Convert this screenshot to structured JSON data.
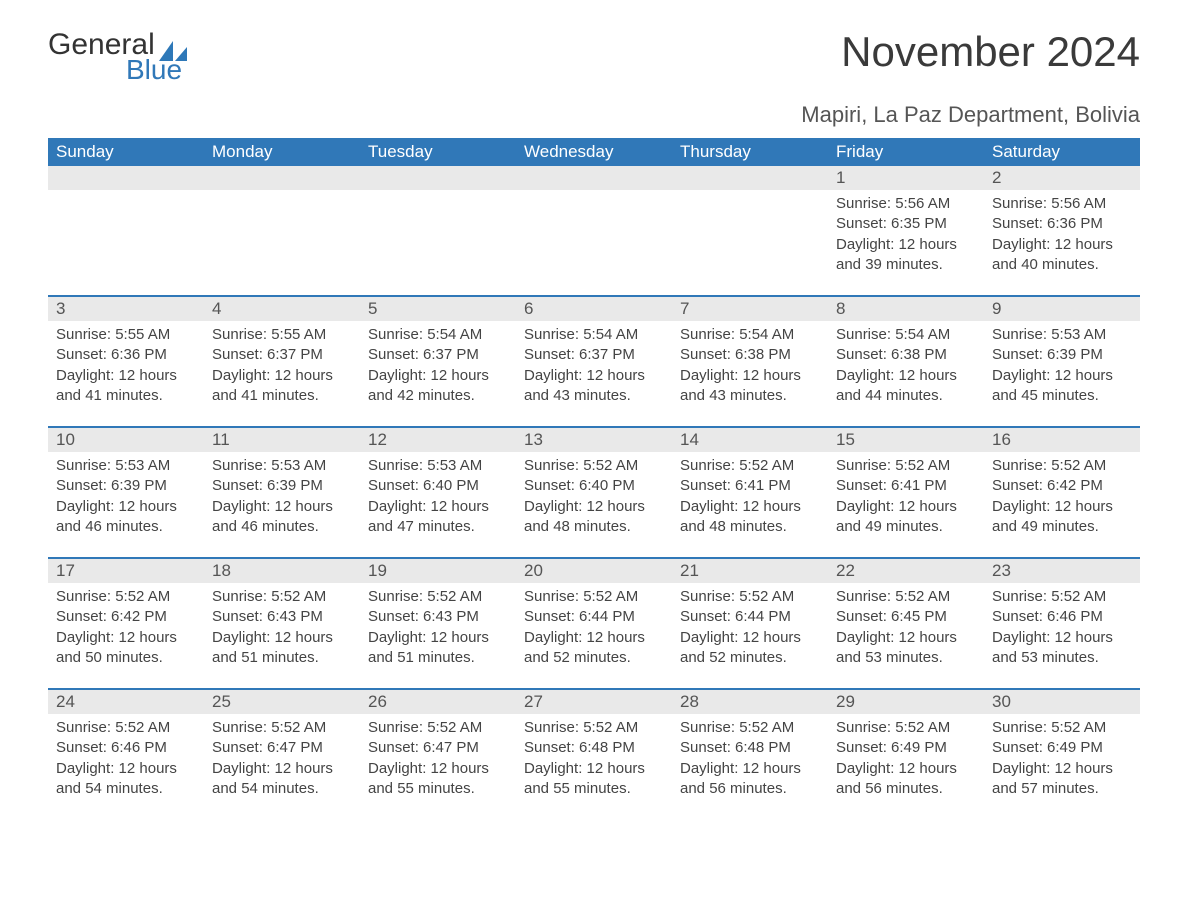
{
  "logo": {
    "word1": "General",
    "word2": "Blue",
    "sail_color": "#2e78b8"
  },
  "title": "November 2024",
  "subtitle": "Mapiri, La Paz Department, Bolivia",
  "colors": {
    "header_bg": "#3078b8",
    "header_fg": "#ffffff",
    "row_divider": "#3078b8",
    "daynum_bg": "#e9e9e9",
    "body_text": "#444444",
    "page_bg": "#ffffff"
  },
  "layout": {
    "columns": 7,
    "rows": 5,
    "first_weekday_index": 5
  },
  "weekdays": [
    "Sunday",
    "Monday",
    "Tuesday",
    "Wednesday",
    "Thursday",
    "Friday",
    "Saturday"
  ],
  "days": [
    {
      "n": 1,
      "sunrise": "5:56 AM",
      "sunset": "6:35 PM",
      "daylight": "12 hours and 39 minutes."
    },
    {
      "n": 2,
      "sunrise": "5:56 AM",
      "sunset": "6:36 PM",
      "daylight": "12 hours and 40 minutes."
    },
    {
      "n": 3,
      "sunrise": "5:55 AM",
      "sunset": "6:36 PM",
      "daylight": "12 hours and 41 minutes."
    },
    {
      "n": 4,
      "sunrise": "5:55 AM",
      "sunset": "6:37 PM",
      "daylight": "12 hours and 41 minutes."
    },
    {
      "n": 5,
      "sunrise": "5:54 AM",
      "sunset": "6:37 PM",
      "daylight": "12 hours and 42 minutes."
    },
    {
      "n": 6,
      "sunrise": "5:54 AM",
      "sunset": "6:37 PM",
      "daylight": "12 hours and 43 minutes."
    },
    {
      "n": 7,
      "sunrise": "5:54 AM",
      "sunset": "6:38 PM",
      "daylight": "12 hours and 43 minutes."
    },
    {
      "n": 8,
      "sunrise": "5:54 AM",
      "sunset": "6:38 PM",
      "daylight": "12 hours and 44 minutes."
    },
    {
      "n": 9,
      "sunrise": "5:53 AM",
      "sunset": "6:39 PM",
      "daylight": "12 hours and 45 minutes."
    },
    {
      "n": 10,
      "sunrise": "5:53 AM",
      "sunset": "6:39 PM",
      "daylight": "12 hours and 46 minutes."
    },
    {
      "n": 11,
      "sunrise": "5:53 AM",
      "sunset": "6:39 PM",
      "daylight": "12 hours and 46 minutes."
    },
    {
      "n": 12,
      "sunrise": "5:53 AM",
      "sunset": "6:40 PM",
      "daylight": "12 hours and 47 minutes."
    },
    {
      "n": 13,
      "sunrise": "5:52 AM",
      "sunset": "6:40 PM",
      "daylight": "12 hours and 48 minutes."
    },
    {
      "n": 14,
      "sunrise": "5:52 AM",
      "sunset": "6:41 PM",
      "daylight": "12 hours and 48 minutes."
    },
    {
      "n": 15,
      "sunrise": "5:52 AM",
      "sunset": "6:41 PM",
      "daylight": "12 hours and 49 minutes."
    },
    {
      "n": 16,
      "sunrise": "5:52 AM",
      "sunset": "6:42 PM",
      "daylight": "12 hours and 49 minutes."
    },
    {
      "n": 17,
      "sunrise": "5:52 AM",
      "sunset": "6:42 PM",
      "daylight": "12 hours and 50 minutes."
    },
    {
      "n": 18,
      "sunrise": "5:52 AM",
      "sunset": "6:43 PM",
      "daylight": "12 hours and 51 minutes."
    },
    {
      "n": 19,
      "sunrise": "5:52 AM",
      "sunset": "6:43 PM",
      "daylight": "12 hours and 51 minutes."
    },
    {
      "n": 20,
      "sunrise": "5:52 AM",
      "sunset": "6:44 PM",
      "daylight": "12 hours and 52 minutes."
    },
    {
      "n": 21,
      "sunrise": "5:52 AM",
      "sunset": "6:44 PM",
      "daylight": "12 hours and 52 minutes."
    },
    {
      "n": 22,
      "sunrise": "5:52 AM",
      "sunset": "6:45 PM",
      "daylight": "12 hours and 53 minutes."
    },
    {
      "n": 23,
      "sunrise": "5:52 AM",
      "sunset": "6:46 PM",
      "daylight": "12 hours and 53 minutes."
    },
    {
      "n": 24,
      "sunrise": "5:52 AM",
      "sunset": "6:46 PM",
      "daylight": "12 hours and 54 minutes."
    },
    {
      "n": 25,
      "sunrise": "5:52 AM",
      "sunset": "6:47 PM",
      "daylight": "12 hours and 54 minutes."
    },
    {
      "n": 26,
      "sunrise": "5:52 AM",
      "sunset": "6:47 PM",
      "daylight": "12 hours and 55 minutes."
    },
    {
      "n": 27,
      "sunrise": "5:52 AM",
      "sunset": "6:48 PM",
      "daylight": "12 hours and 55 minutes."
    },
    {
      "n": 28,
      "sunrise": "5:52 AM",
      "sunset": "6:48 PM",
      "daylight": "12 hours and 56 minutes."
    },
    {
      "n": 29,
      "sunrise": "5:52 AM",
      "sunset": "6:49 PM",
      "daylight": "12 hours and 56 minutes."
    },
    {
      "n": 30,
      "sunrise": "5:52 AM",
      "sunset": "6:49 PM",
      "daylight": "12 hours and 57 minutes."
    }
  ],
  "labels": {
    "sunrise": "Sunrise: ",
    "sunset": "Sunset: ",
    "daylight": "Daylight: "
  }
}
